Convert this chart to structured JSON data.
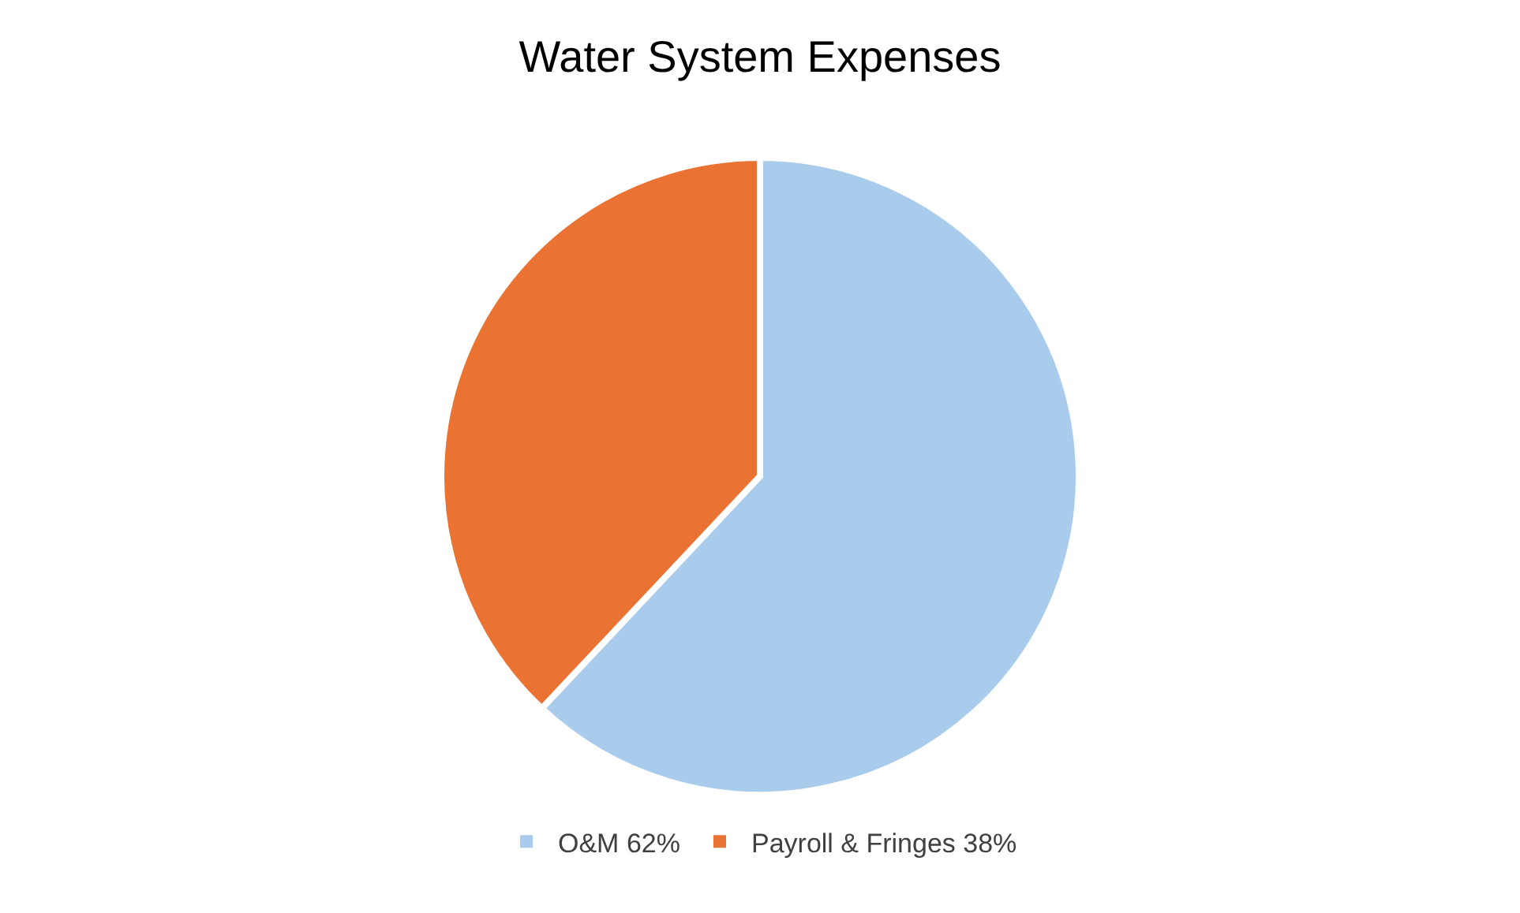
{
  "chart_data": {
    "type": "pie",
    "title": "Water System Expenses",
    "categories": [
      "O&M 62%",
      "Payroll & Fringes 38%"
    ],
    "values": [
      62,
      38
    ],
    "colors": [
      "#a9cbec",
      "#ea7333"
    ],
    "legend": "bottom"
  }
}
